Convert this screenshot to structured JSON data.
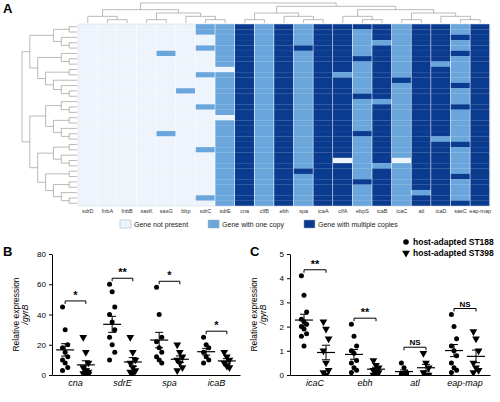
{
  "chart_data": [
    {
      "type": "heatmap",
      "title": "A",
      "categories": [
        "sdrD",
        "fnbA",
        "fnbB",
        "sasK",
        "sasG",
        "bbp",
        "sdrC",
        "sdrE",
        "cna",
        "clfB",
        "ebh",
        "spa",
        "icaA",
        "clfA",
        "ebpS",
        "icaB",
        "icaC",
        "atl",
        "icaD",
        "sasC",
        "eap-map"
      ],
      "levels": [
        {
          "value": 0,
          "name": "Gene not present",
          "color": "#eef4fb"
        },
        {
          "value": 1,
          "name": "Gene with one copy",
          "color": "#6aa6dc"
        },
        {
          "value": 2,
          "name": "Gene with multiple copies",
          "color": "#0b3b8f"
        }
      ],
      "cells": [
        [
          0,
          0,
          0,
          0,
          0,
          0,
          1,
          1,
          2,
          1,
          2,
          1,
          2,
          2,
          2,
          2,
          1,
          2,
          2,
          1,
          2
        ],
        [
          0,
          0,
          0,
          0,
          0,
          0,
          1,
          1,
          2,
          1,
          2,
          1,
          2,
          2,
          1,
          2,
          1,
          2,
          2,
          1,
          2
        ],
        [
          0,
          0,
          0,
          0,
          0,
          0,
          0,
          1,
          2,
          1,
          2,
          1,
          2,
          2,
          1,
          2,
          1,
          2,
          2,
          2,
          2
        ],
        [
          0,
          0,
          0,
          0,
          0,
          0,
          0,
          1,
          2,
          1,
          2,
          1,
          2,
          2,
          1,
          1,
          1,
          2,
          2,
          1,
          2
        ],
        [
          0,
          0,
          0,
          0,
          0,
          0,
          1,
          1,
          2,
          1,
          2,
          2,
          2,
          2,
          1,
          2,
          1,
          2,
          2,
          1,
          2
        ],
        [
          0,
          0,
          0,
          0,
          1,
          0,
          0,
          1,
          2,
          1,
          2,
          1,
          2,
          2,
          1,
          2,
          1,
          2,
          2,
          2,
          2
        ],
        [
          0,
          0,
          0,
          0,
          0,
          0,
          0,
          1,
          2,
          1,
          2,
          1,
          2,
          2,
          2,
          2,
          1,
          2,
          2,
          1,
          2
        ],
        [
          0,
          0,
          0,
          0,
          0,
          0,
          0,
          1,
          2,
          1,
          2,
          1,
          2,
          2,
          1,
          2,
          1,
          2,
          1,
          1,
          2
        ],
        [
          0,
          0,
          0,
          0,
          0,
          0,
          0,
          0,
          2,
          1,
          2,
          1,
          2,
          2,
          1,
          2,
          1,
          2,
          2,
          1,
          2
        ],
        [
          0,
          0,
          0,
          0,
          0,
          0,
          1,
          1,
          2,
          1,
          2,
          1,
          2,
          1,
          1,
          2,
          1,
          2,
          2,
          1,
          2
        ],
        [
          0,
          0,
          0,
          0,
          0,
          0,
          0,
          1,
          2,
          1,
          2,
          1,
          2,
          2,
          1,
          2,
          2,
          2,
          2,
          1,
          2
        ],
        [
          0,
          0,
          0,
          0,
          0,
          0,
          0,
          1,
          2,
          1,
          2,
          1,
          2,
          2,
          1,
          2,
          1,
          2,
          2,
          2,
          2
        ],
        [
          0,
          0,
          0,
          0,
          0,
          1,
          0,
          1,
          2,
          1,
          2,
          1,
          2,
          2,
          1,
          2,
          1,
          2,
          2,
          1,
          2
        ],
        [
          0,
          0,
          0,
          0,
          0,
          0,
          0,
          1,
          2,
          1,
          2,
          1,
          2,
          2,
          2,
          2,
          1,
          2,
          2,
          1,
          2
        ],
        [
          0,
          0,
          0,
          0,
          0,
          0,
          0,
          1,
          2,
          1,
          2,
          1,
          2,
          2,
          1,
          1,
          1,
          2,
          2,
          1,
          2
        ],
        [
          0,
          0,
          0,
          0,
          0,
          0,
          1,
          1,
          2,
          1,
          2,
          1,
          2,
          2,
          1,
          2,
          1,
          2,
          2,
          2,
          2
        ],
        [
          0,
          0,
          0,
          0,
          0,
          0,
          0,
          1,
          2,
          1,
          2,
          1,
          2,
          2,
          1,
          2,
          1,
          2,
          2,
          1,
          2
        ],
        [
          0,
          0,
          0,
          0,
          0,
          0,
          0,
          0,
          2,
          1,
          2,
          1,
          2,
          2,
          1,
          2,
          1,
          2,
          2,
          1,
          2
        ],
        [
          0,
          0,
          0,
          0,
          0,
          0,
          0,
          1,
          2,
          1,
          2,
          1,
          2,
          2,
          1,
          2,
          1,
          2,
          2,
          1,
          2
        ],
        [
          0,
          0,
          0,
          0,
          0,
          0,
          0,
          1,
          2,
          1,
          2,
          1,
          2,
          2,
          1,
          2,
          1,
          2,
          2,
          1,
          2
        ],
        [
          0,
          0,
          0,
          0,
          1,
          0,
          0,
          1,
          2,
          1,
          2,
          1,
          2,
          2,
          2,
          2,
          1,
          2,
          2,
          1,
          2
        ],
        [
          0,
          0,
          0,
          0,
          0,
          0,
          0,
          1,
          2,
          1,
          2,
          1,
          2,
          2,
          1,
          2,
          1,
          2,
          1,
          1,
          2
        ],
        [
          0,
          0,
          0,
          0,
          0,
          0,
          0,
          1,
          2,
          1,
          2,
          1,
          2,
          2,
          1,
          2,
          1,
          2,
          2,
          2,
          2
        ],
        [
          0,
          0,
          0,
          0,
          0,
          0,
          1,
          1,
          2,
          1,
          2,
          1,
          2,
          2,
          1,
          2,
          1,
          2,
          2,
          1,
          2
        ],
        [
          0,
          0,
          0,
          0,
          0,
          0,
          0,
          1,
          2,
          1,
          2,
          1,
          2,
          2,
          1,
          2,
          1,
          2,
          2,
          1,
          2
        ],
        [
          0,
          0,
          0,
          0,
          0,
          0,
          0,
          1,
          2,
          1,
          2,
          1,
          2,
          0,
          1,
          2,
          0,
          2,
          2,
          1,
          2
        ],
        [
          0,
          0,
          0,
          0,
          0,
          0,
          0,
          1,
          2,
          1,
          2,
          1,
          2,
          2,
          1,
          1,
          1,
          2,
          2,
          1,
          2
        ],
        [
          0,
          0,
          0,
          0,
          0,
          0,
          0,
          1,
          2,
          1,
          2,
          2,
          2,
          2,
          1,
          2,
          1,
          2,
          2,
          1,
          2
        ],
        [
          0,
          0,
          0,
          0,
          0,
          0,
          0,
          1,
          2,
          1,
          2,
          1,
          2,
          2,
          1,
          2,
          1,
          2,
          2,
          2,
          2
        ],
        [
          0,
          0,
          0,
          0,
          0,
          0,
          0,
          1,
          2,
          1,
          2,
          1,
          2,
          2,
          2,
          2,
          1,
          2,
          2,
          1,
          2
        ],
        [
          0,
          0,
          0,
          0,
          0,
          0,
          0,
          1,
          2,
          1,
          2,
          1,
          2,
          2,
          1,
          2,
          1,
          2,
          2,
          1,
          2
        ],
        [
          0,
          0,
          0,
          0,
          0,
          0,
          0,
          1,
          2,
          1,
          2,
          1,
          2,
          2,
          1,
          2,
          1,
          1,
          2,
          1,
          2
        ],
        [
          0,
          0,
          0,
          0,
          0,
          0,
          1,
          1,
          2,
          1,
          2,
          1,
          2,
          2,
          1,
          2,
          1,
          2,
          2,
          1,
          2
        ],
        [
          0,
          0,
          0,
          0,
          0,
          0,
          0,
          1,
          2,
          1,
          2,
          1,
          2,
          2,
          1,
          2,
          1,
          2,
          2,
          2,
          2
        ]
      ]
    },
    {
      "type": "scatter",
      "title": "B",
      "categories": [
        "cna",
        "sdrE",
        "spa",
        "icaB"
      ],
      "y_label": [
        "Relative expression",
        "/gyrB"
      ],
      "ylim": [
        0,
        80
      ],
      "yticks": [
        0,
        20,
        40,
        60,
        80
      ],
      "annotations": [
        "*",
        "**",
        "*",
        "*"
      ],
      "series": [
        {
          "marker": "circle",
          "color": "#000000",
          "values": [
            [
              45,
              30,
              20,
              18,
              15,
              12,
              10,
              8,
              5,
              3
            ],
            [
              60,
              55,
              45,
              40,
              35,
              30,
              25,
              20,
              15,
              10
            ],
            [
              58,
              40,
              25,
              22,
              18,
              15,
              12,
              10,
              8
            ],
            [
              25,
              20,
              18,
              15,
              12,
              10,
              8
            ]
          ],
          "mean": [
            16.6,
            33.5,
            23.1,
            15.4
          ],
          "sem": [
            4.1,
            5.3,
            5.1,
            2.2
          ]
        },
        {
          "marker": "triangle-down",
          "color": "#000000",
          "values": [
            [
              25,
              15,
              8,
              5,
              3,
              2,
              1,
              1,
              0.5
            ],
            [
              25,
              15,
              10,
              8,
              5,
              3,
              2,
              1
            ],
            [
              20,
              15,
              12,
              10,
              8,
              5,
              3
            ],
            [
              15,
              12,
              10,
              8,
              6,
              5
            ]
          ],
          "mean": [
            6.7,
            8.6,
            10.4,
            9.3
          ],
          "sem": [
            2.7,
            2.9,
            2.2,
            1.5
          ]
        }
      ]
    },
    {
      "type": "scatter",
      "title": "C",
      "categories": [
        "icaC",
        "ebh",
        "atl",
        "eap-map"
      ],
      "y_label": [
        "Relative expression",
        "/gyrB"
      ],
      "ylim": [
        0,
        5
      ],
      "yticks": [
        0,
        1,
        2,
        3,
        4,
        5
      ],
      "annotations": [
        "**",
        "**",
        "NS",
        "NS"
      ],
      "legend": "top-right",
      "series": [
        {
          "name": "host-adapted ST188",
          "marker": "circle",
          "color": "#000000",
          "values": [
            [
              4.1,
              3.3,
              2.6,
              2.3,
              2.2,
              2.1,
              2.0,
              1.9,
              1.7,
              1.6,
              1.2
            ],
            [
              2.1,
              1.6,
              1.2,
              1.0,
              0.9,
              0.6,
              0.5,
              0.3,
              0.2,
              0.1
            ],
            [
              0.5,
              0.3,
              0.1,
              0.05,
              0,
              0,
              0
            ],
            [
              2.5,
              2.0,
              1.5,
              1.2,
              1.0,
              0.8,
              0.5,
              0.3,
              0.2,
              0.1
            ]
          ],
          "mean": [
            2.27,
            0.85,
            0.14,
            1.01
          ],
          "sem": [
            0.24,
            0.2,
            0.07,
            0.25
          ]
        },
        {
          "name": "host-adapted ST398",
          "marker": "triangle-down",
          "color": "#000000",
          "values": [
            [
              2.2,
              1.9,
              1.5,
              1.0,
              0.5,
              0.2,
              0.1,
              0
            ],
            [
              0.6,
              0.4,
              0.3,
              0.2,
              0.1,
              0.1,
              0
            ],
            [
              0.9,
              0.5,
              0.3,
              0.1,
              0,
              0
            ],
            [
              1.8,
              1.5,
              1.0,
              0.5,
              0.3,
              0.2,
              0.1
            ]
          ],
          "mean": [
            0.93,
            0.24,
            0.3,
            0.77
          ],
          "sem": [
            0.3,
            0.08,
            0.14,
            0.26
          ]
        }
      ]
    }
  ]
}
